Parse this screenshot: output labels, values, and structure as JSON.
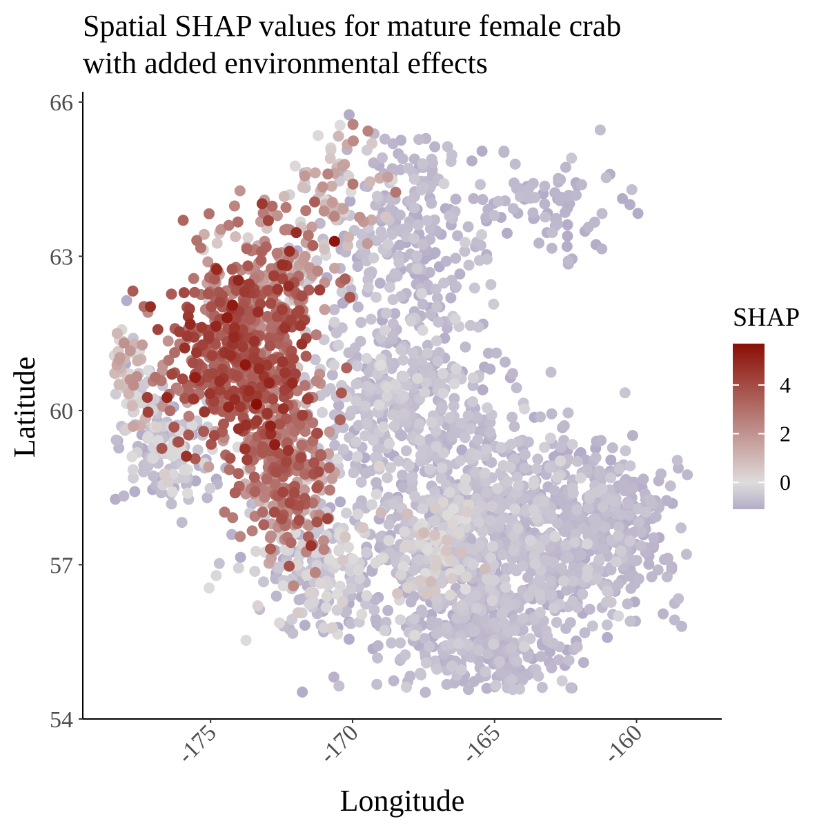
{
  "chart_data": {
    "type": "scatter",
    "title": [
      "Spatial SHAP values for mature female crab",
      "with added environmental effects"
    ],
    "xlabel": "Longitude",
    "ylabel": "Latitude",
    "xlim": [
      -179.5,
      -157
    ],
    "ylim": [
      54,
      66.2
    ],
    "xticks": [
      -175,
      -170,
      -165,
      -160
    ],
    "xtick_labels": [
      "-175",
      "-170",
      "-165",
      "-160"
    ],
    "yticks": [
      54,
      57,
      60,
      63,
      66
    ],
    "ytick_labels": [
      "54",
      "57",
      "60",
      "63",
      "66"
    ],
    "grid": false,
    "legend": {
      "title": "SHAP",
      "placement": "right",
      "range": [
        -1.1,
        5.7
      ],
      "ticks": [
        0,
        2,
        4
      ],
      "tick_labels": [
        "0",
        "2",
        "4"
      ],
      "colors": {
        "low": "#b4acc8",
        "mid": "#dedcdc",
        "high": "#8b0e04"
      }
    },
    "point_color_scale": "diverging",
    "regions": [
      {
        "lon": -174.0,
        "lat": 61.0,
        "sd_lon": 1.3,
        "sd_lat": 0.9,
        "n": 520,
        "shap": 3.4,
        "shap_sd": 0.8
      },
      {
        "lon": -172.3,
        "lat": 58.8,
        "sd_lon": 0.9,
        "sd_lat": 0.8,
        "n": 260,
        "shap": 2.6,
        "shap_sd": 0.9
      },
      {
        "lon": -172.8,
        "lat": 62.7,
        "sd_lon": 1.1,
        "sd_lat": 0.7,
        "n": 170,
        "shap": 2.0,
        "shap_sd": 1.1
      },
      {
        "lon": -170.6,
        "lat": 64.3,
        "sd_lon": 0.8,
        "sd_lat": 0.7,
        "n": 70,
        "shap": 1.2,
        "shap_sd": 1.1
      },
      {
        "lon": -176.6,
        "lat": 59.3,
        "sd_lon": 1.0,
        "sd_lat": 0.6,
        "n": 160,
        "shap": -0.6,
        "shap_sd": 0.4
      },
      {
        "lon": -178.0,
        "lat": 60.7,
        "sd_lon": 0.5,
        "sd_lat": 0.5,
        "n": 70,
        "shap": 0.6,
        "shap_sd": 1.0
      },
      {
        "lon": -168.0,
        "lat": 63.6,
        "sd_lon": 1.4,
        "sd_lat": 1.0,
        "n": 230,
        "shap": -0.8,
        "shap_sd": 0.2
      },
      {
        "lon": -163.0,
        "lat": 64.0,
        "sd_lon": 1.3,
        "sd_lat": 0.5,
        "n": 80,
        "shap": -0.9,
        "shap_sd": 0.15
      },
      {
        "lon": -168.2,
        "lat": 60.2,
        "sd_lon": 1.6,
        "sd_lat": 1.0,
        "n": 380,
        "shap": -0.7,
        "shap_sd": 0.25
      },
      {
        "lon": -165.0,
        "lat": 57.6,
        "sd_lon": 2.3,
        "sd_lat": 1.2,
        "n": 900,
        "shap": -0.75,
        "shap_sd": 0.25
      },
      {
        "lon": -161.0,
        "lat": 57.7,
        "sd_lon": 1.3,
        "sd_lat": 0.7,
        "n": 280,
        "shap": -0.85,
        "shap_sd": 0.15
      },
      {
        "lon": -165.3,
        "lat": 55.5,
        "sd_lon": 1.4,
        "sd_lat": 0.6,
        "n": 280,
        "shap": -0.8,
        "shap_sd": 0.2
      },
      {
        "lon": -170.8,
        "lat": 57.0,
        "sd_lon": 1.4,
        "sd_lat": 0.7,
        "n": 220,
        "shap": -0.5,
        "shap_sd": 0.4
      },
      {
        "lon": -167.0,
        "lat": 57.3,
        "sd_lon": 0.8,
        "sd_lat": 0.6,
        "n": 120,
        "shap": -0.2,
        "shap_sd": 0.6
      }
    ],
    "point_extent": {
      "lon_min": -178.4,
      "lon_max": -158.2,
      "lat_min": 54.5,
      "lat_max": 65.8
    }
  }
}
